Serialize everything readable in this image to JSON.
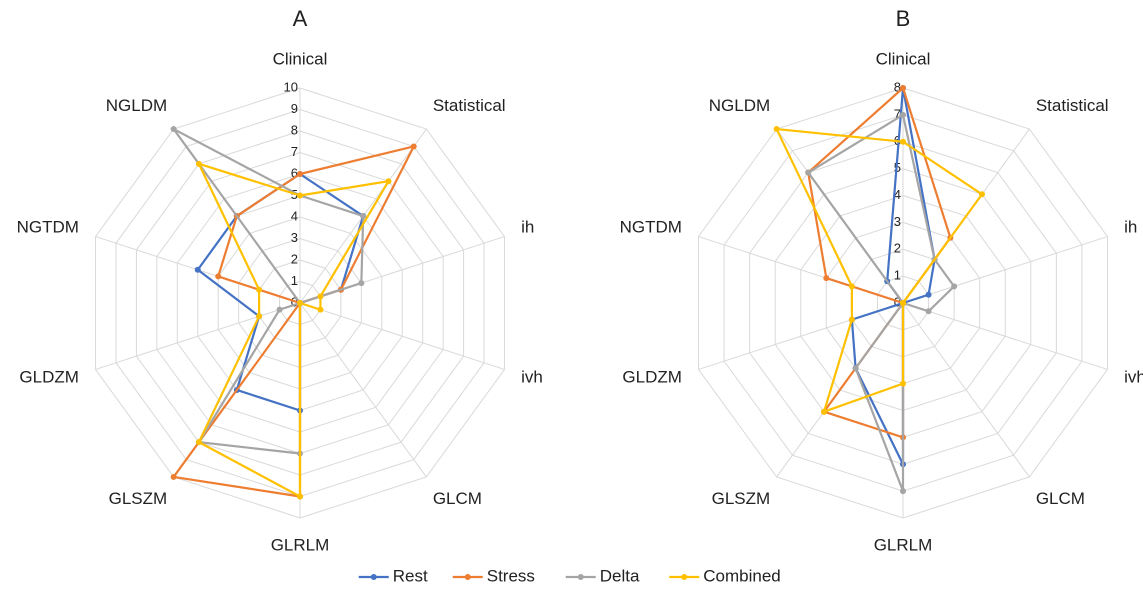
{
  "chart_data": [
    {
      "type": "radar",
      "title": "A",
      "categories": [
        "Clinical",
        "Statistical",
        "ih",
        "ivh",
        "GLCM",
        "GLRLM",
        "GLSZM",
        "GLDZM",
        "NGTDM",
        "NGLDM"
      ],
      "rlim": [
        0,
        10
      ],
      "rticks": [
        0,
        1,
        2,
        3,
        4,
        5,
        6,
        7,
        8,
        9,
        10
      ],
      "series": [
        {
          "values": [
            6,
            5,
            2,
            0,
            0,
            5,
            5,
            2,
            5,
            5
          ]
        },
        {
          "values": [
            6,
            9,
            2,
            0,
            0,
            9,
            10,
            0,
            4,
            5
          ]
        },
        {
          "values": [
            5,
            5,
            3,
            0,
            0,
            7,
            8,
            1,
            0,
            10
          ]
        },
        {
          "values": [
            5,
            7,
            1,
            1,
            0,
            9,
            8,
            2,
            2,
            8
          ]
        }
      ]
    },
    {
      "type": "radar",
      "title": "B",
      "categories": [
        "Clinical",
        "Statistical",
        "ih",
        "ivh",
        "GLCM",
        "GLRLM",
        "GLSZM",
        "GLDZM",
        "NGTDM",
        "NGLDM"
      ],
      "rlim": [
        0,
        8
      ],
      "rticks": [
        0,
        1,
        2,
        3,
        4,
        5,
        6,
        7,
        8
      ],
      "series": [
        {
          "values": [
            8,
            2,
            1,
            0,
            0,
            6,
            3,
            2,
            0,
            1
          ]
        },
        {
          "values": [
            8,
            3,
            0,
            0,
            0,
            5,
            5,
            0,
            3,
            6
          ]
        },
        {
          "values": [
            7,
            2,
            2,
            1,
            0,
            7,
            3,
            0,
            0,
            6
          ]
        },
        {
          "values": [
            6,
            5,
            0,
            0,
            0,
            3,
            5,
            2,
            2,
            8
          ]
        }
      ]
    }
  ],
  "legend": {
    "series": [
      {
        "name": "Rest",
        "color": "#4472c4"
      },
      {
        "name": "Stress",
        "color": "#ed7d31"
      },
      {
        "name": "Delta",
        "color": "#a5a5a5"
      },
      {
        "name": "Combined",
        "color": "#ffc000"
      }
    ]
  }
}
